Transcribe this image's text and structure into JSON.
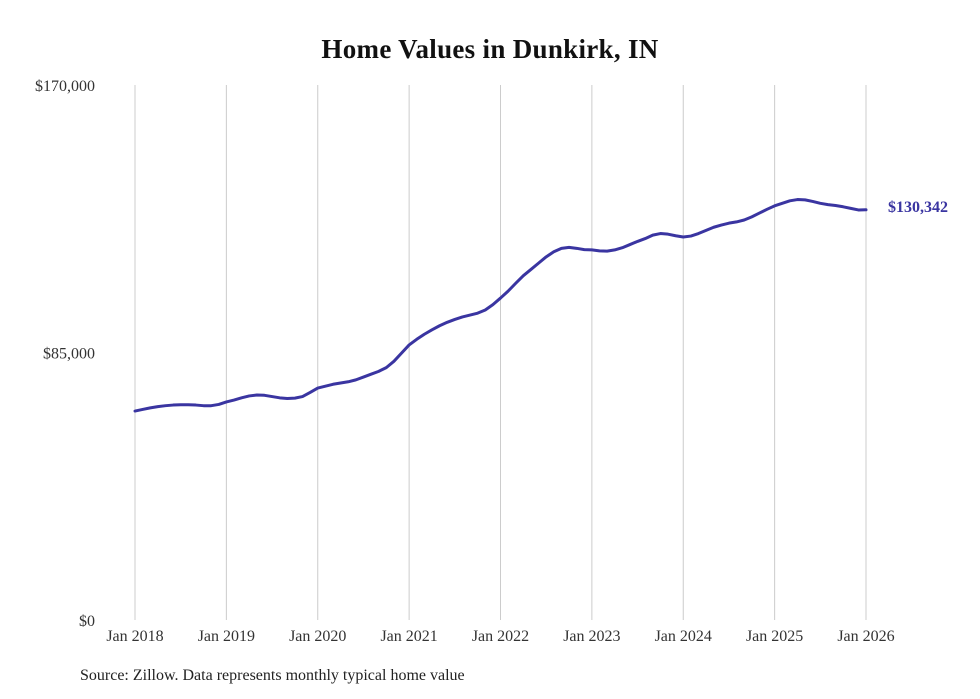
{
  "title": "Home Values in Dunkirk, IN",
  "source_note": "Source: Zillow. Data represents monthly typical home value",
  "chart_data": {
    "type": "line",
    "title": "Home Values in Dunkirk, IN",
    "xlabel": "",
    "ylabel": "",
    "ylim": [
      0,
      170000
    ],
    "grid": "vertical-only",
    "legend": "none",
    "line_color": "#3a35a1",
    "grid_color": "#cccccc",
    "tick_color": "#333333",
    "end_label": "$130,342",
    "y_ticks": [
      {
        "label": "$0",
        "value": 0
      },
      {
        "label": "$85,000",
        "value": 85000
      },
      {
        "label": "$170,000",
        "value": 170000
      }
    ],
    "x_tick_labels": [
      "Jan 2018",
      "Jan 2019",
      "Jan 2020",
      "Jan 2021",
      "Jan 2022",
      "Jan 2023",
      "Jan 2024",
      "Jan 2025",
      "Jan 2026"
    ],
    "series": [
      {
        "name": "Typical home value (monthly, Jan 2018 - Jan 2026)",
        "values": [
          66400,
          66900,
          67400,
          67800,
          68100,
          68300,
          68400,
          68400,
          68300,
          68100,
          68100,
          68500,
          69300,
          69900,
          70600,
          71200,
          71500,
          71400,
          71000,
          70600,
          70400,
          70500,
          71000,
          72300,
          73700,
          74300,
          74900,
          75300,
          75700,
          76300,
          77200,
          78100,
          79000,
          80200,
          82200,
          84800,
          87400,
          89200,
          90800,
          92200,
          93500,
          94600,
          95500,
          96300,
          96900,
          97500,
          98500,
          100200,
          102300,
          104500,
          107000,
          109400,
          111400,
          113400,
          115400,
          117000,
          118100,
          118400,
          118100,
          117700,
          117600,
          117300,
          117200,
          117600,
          118300,
          119300,
          120300,
          121200,
          122300,
          122800,
          122600,
          122100,
          121700,
          122000,
          122800,
          123800,
          124800,
          125500,
          126100,
          126500,
          127100,
          128100,
          129300,
          130500,
          131600,
          132400,
          133200,
          133600,
          133500,
          133000,
          132400,
          132000,
          131700,
          131300,
          130800,
          130300,
          130342
        ]
      }
    ]
  }
}
